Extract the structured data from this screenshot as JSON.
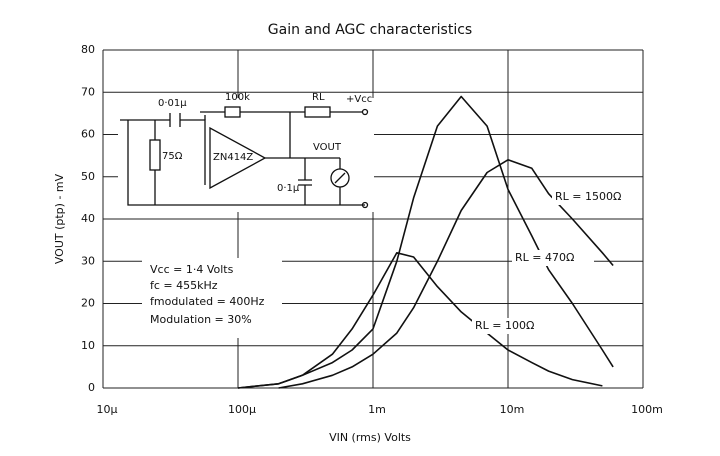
{
  "chart_data": {
    "type": "line",
    "title": "Gain and AGC characteristics",
    "xlabel": "VIN (rms) Volts",
    "ylabel": "VOUT (ptp) - mV",
    "xscale": "log",
    "xlim": [
      1e-05,
      0.1
    ],
    "xticks": [
      {
        "value": 1e-05,
        "label": "10µ"
      },
      {
        "value": 0.0001,
        "label": "100µ"
      },
      {
        "value": 0.001,
        "label": "1m"
      },
      {
        "value": 0.01,
        "label": "10m"
      },
      {
        "value": 0.1,
        "label": "100m"
      }
    ],
    "ylim": [
      0,
      80
    ],
    "yticks": [
      0,
      10,
      20,
      30,
      40,
      50,
      60,
      70,
      80
    ],
    "grid": true,
    "x": [
      0.0001,
      0.0002,
      0.0003,
      0.0005,
      0.0007,
      0.001,
      0.0015,
      0.002,
      0.003,
      0.0045,
      0.007,
      0.01,
      0.015,
      0.02,
      0.03,
      0.05,
      0.06
    ],
    "series": [
      {
        "name": "RL = 1500Ω",
        "color": "#111111",
        "values": [
          null,
          0,
          1,
          3,
          5,
          8,
          13,
          19,
          30,
          42,
          51,
          54,
          52,
          46,
          40,
          32,
          29
        ]
      },
      {
        "name": "RL = 470Ω",
        "color": "#111111",
        "values": [
          0,
          1,
          3,
          6,
          9,
          14,
          30,
          45,
          62,
          69,
          62,
          47,
          36,
          28,
          20,
          9,
          5
        ]
      },
      {
        "name": "RL = 100Ω",
        "color": "#111111",
        "values": [
          0,
          1,
          3,
          8,
          14,
          22,
          32,
          31,
          24,
          18,
          13,
          9,
          6,
          4,
          2,
          0.5,
          null
        ]
      }
    ],
    "annotations": [
      "Vcc = 1·4 Volts",
      "fc = 455kHz",
      "fmodulated = 400Hz",
      "Modulation = 30%"
    ],
    "inset_labels": [
      "0·01µ",
      "100k",
      "RL",
      "+Vcc",
      "75Ω",
      "ZN414Z",
      "VOUT",
      "0·1µ"
    ]
  }
}
